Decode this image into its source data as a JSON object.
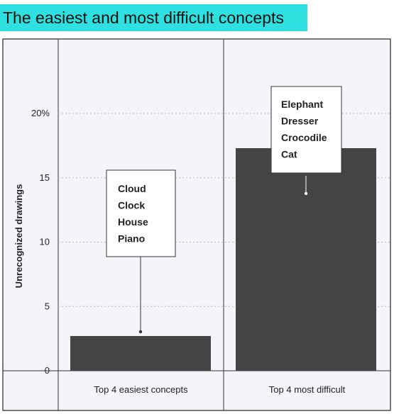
{
  "chart_data": {
    "type": "bar",
    "title": "The easiest and most difficult concepts",
    "ylabel": "Unrecognized drawings",
    "xlabel": "",
    "categories": [
      "Top 4 easiest concepts",
      "Top 4 most difficult"
    ],
    "values": [
      2.7,
      17.3
    ],
    "ylim": [
      0,
      25
    ],
    "yticks": [
      0,
      5,
      10,
      15,
      20
    ],
    "ytick_labels": [
      "0",
      "5",
      "10",
      "15",
      "20%"
    ],
    "annotations": [
      {
        "category": "Top 4 easiest concepts",
        "items": [
          "Cloud",
          "Clock",
          "House",
          "Piano"
        ]
      },
      {
        "category": "Top 4 most difficult",
        "items": [
          "Elephant",
          "Dresser",
          "Crocodile",
          "Cat"
        ]
      }
    ],
    "grid": true,
    "bar_color": "#444444",
    "background": "#f4f5f8",
    "title_bg": "#2fe0e0"
  }
}
